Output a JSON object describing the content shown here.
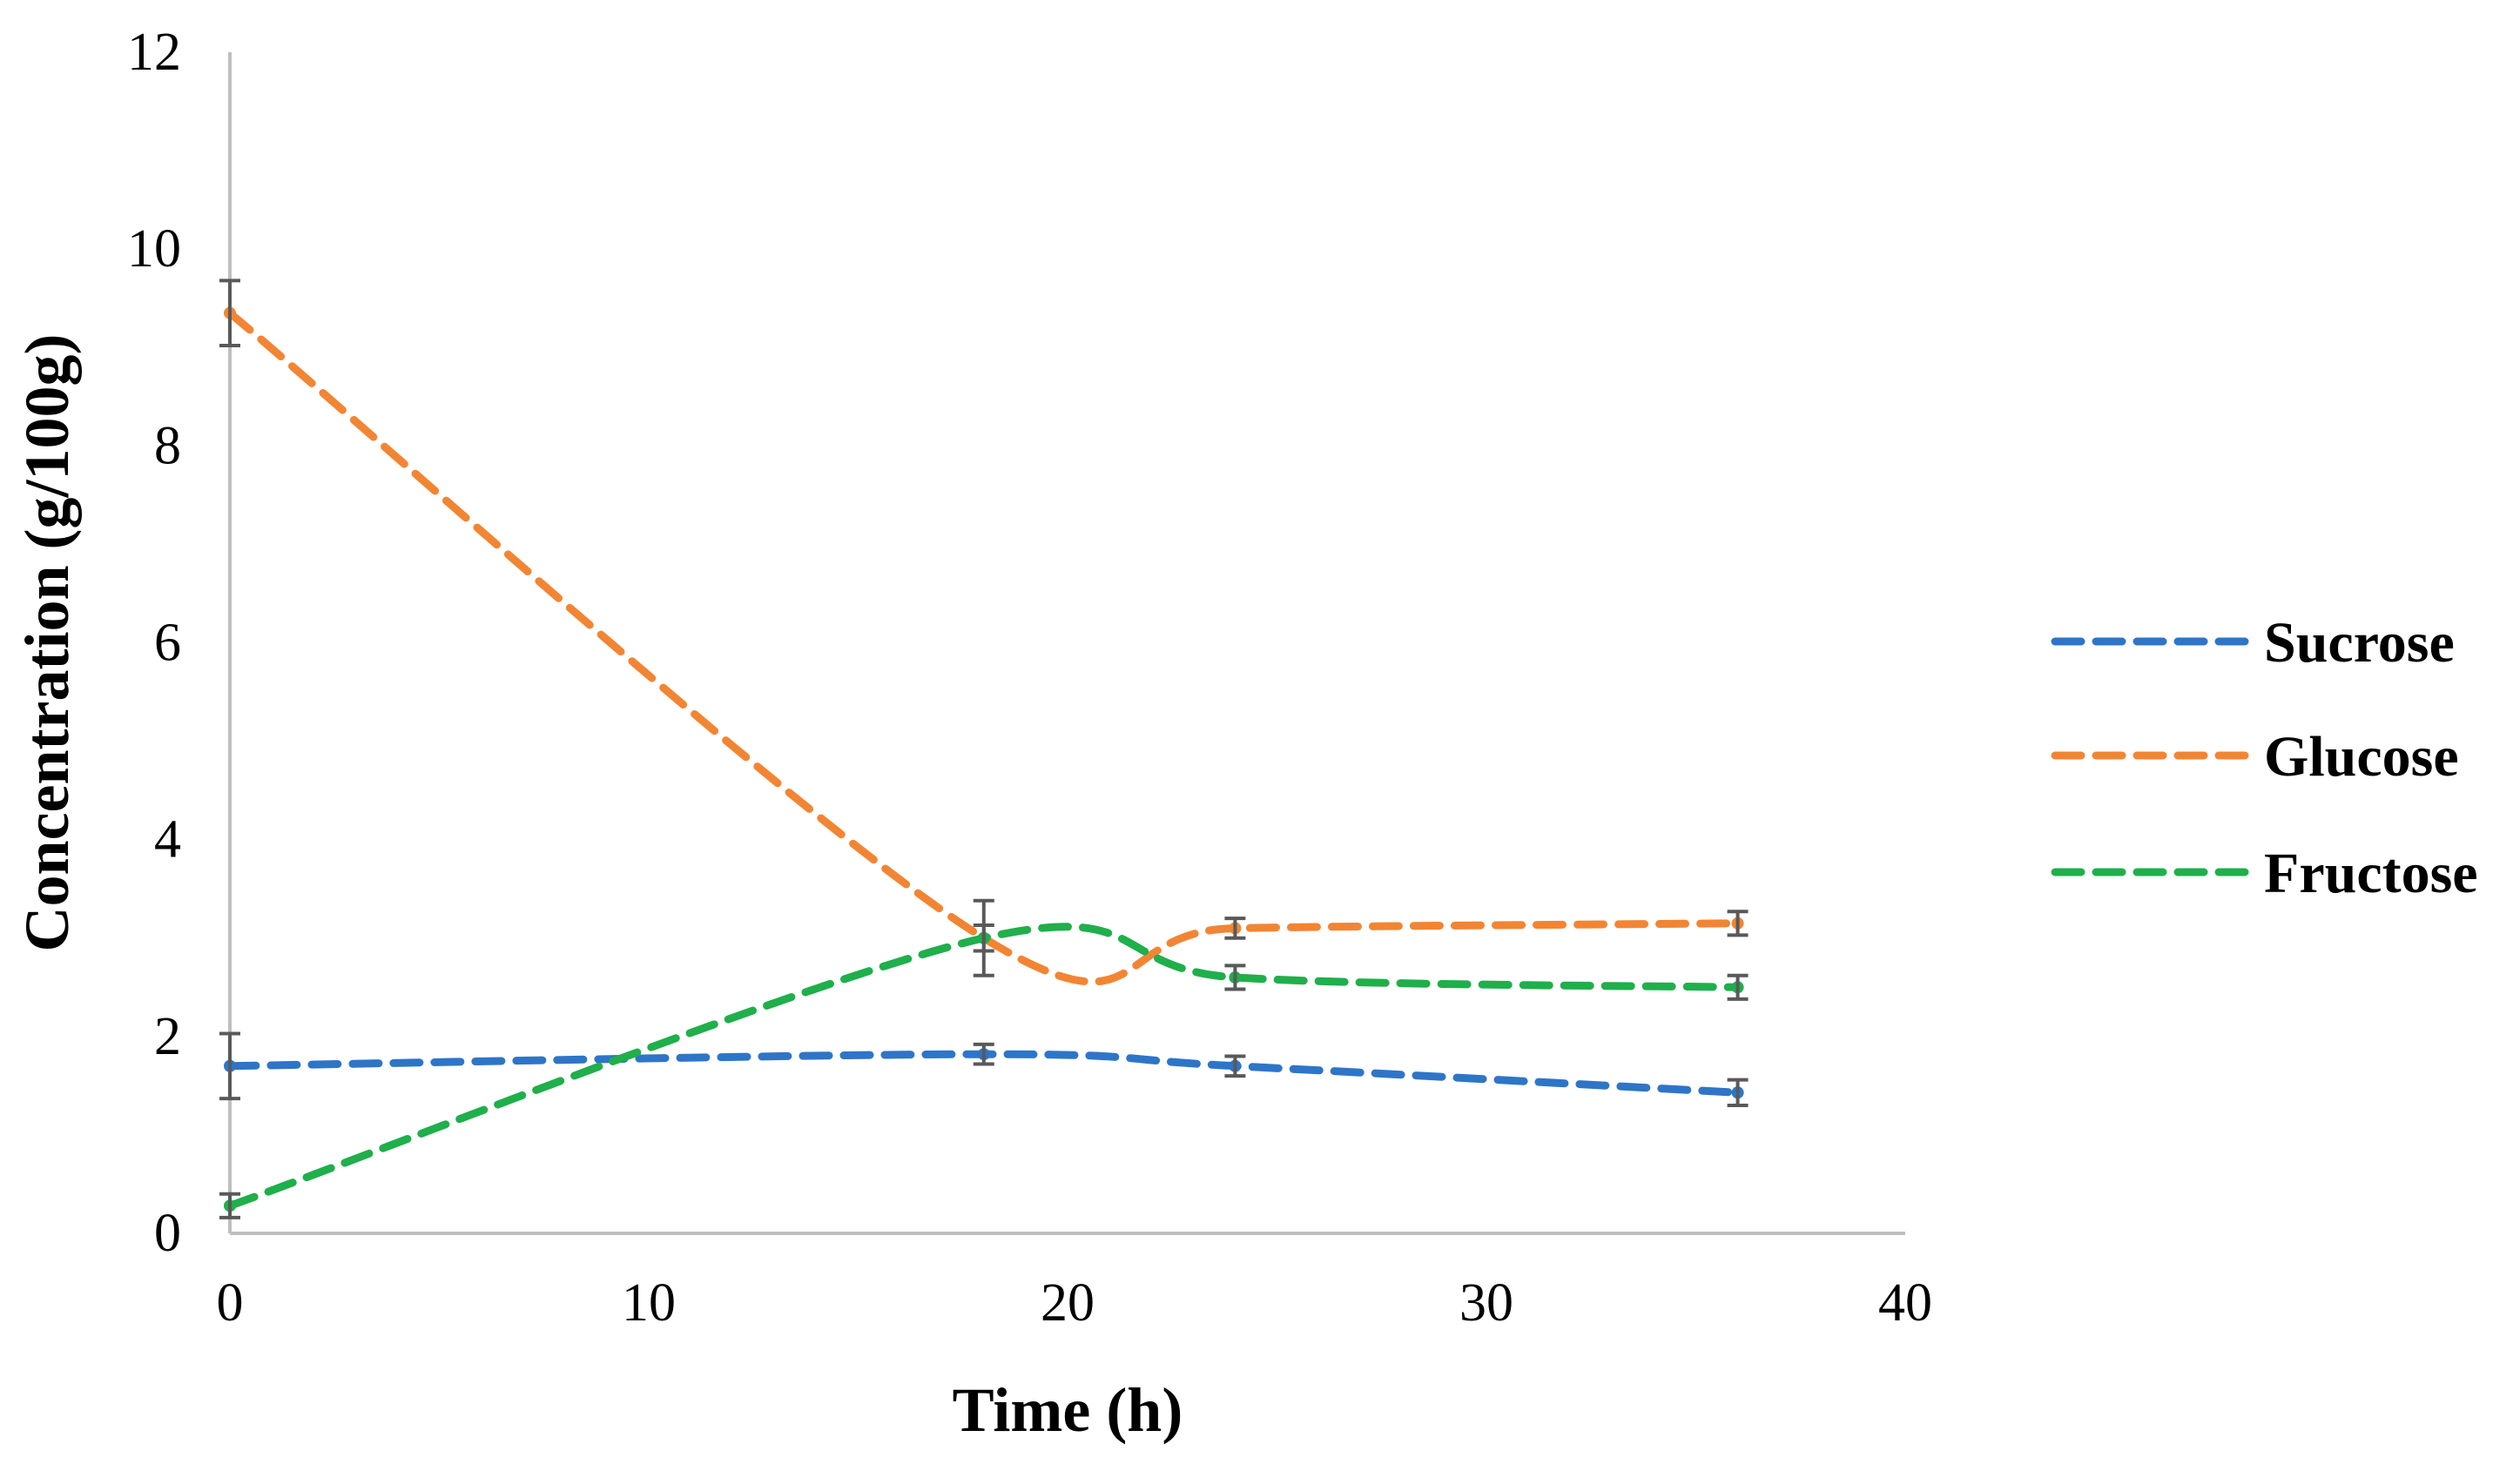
{
  "chart_data": {
    "type": "line",
    "title": "",
    "xlabel": "Time (h)",
    "ylabel": "Concentration (g/100g)",
    "xlim": [
      0,
      40
    ],
    "ylim": [
      0,
      12
    ],
    "xticks": [
      0,
      10,
      20,
      30,
      40
    ],
    "yticks": [
      0,
      2,
      4,
      6,
      8,
      10,
      12
    ],
    "xtick_labels": [
      "0",
      "10",
      "20",
      "30",
      "40"
    ],
    "ytick_labels": [
      "0",
      "2",
      "4",
      "6",
      "8",
      "10",
      "12"
    ],
    "grid": false,
    "legend_position": "right",
    "line_style": "dashed-smooth",
    "series": [
      {
        "name": "Sucrose",
        "color": "#2E75C8",
        "x": [
          0,
          18,
          24,
          36
        ],
        "y": [
          1.7,
          1.82,
          1.7,
          1.43
        ],
        "error": [
          0.33,
          0.1,
          0.1,
          0.13
        ]
      },
      {
        "name": "Glucose",
        "color": "#F28533",
        "x": [
          0,
          18,
          24,
          36
        ],
        "y": [
          9.35,
          3.0,
          3.1,
          3.15
        ],
        "error": [
          0.33,
          0.13,
          0.1,
          0.12
        ]
      },
      {
        "name": "Fructose",
        "color": "#1FAF4B",
        "x": [
          0,
          18,
          24,
          36
        ],
        "y": [
          0.28,
          3.0,
          2.6,
          2.5
        ],
        "error": [
          0.12,
          0.38,
          0.12,
          0.12
        ]
      }
    ]
  }
}
